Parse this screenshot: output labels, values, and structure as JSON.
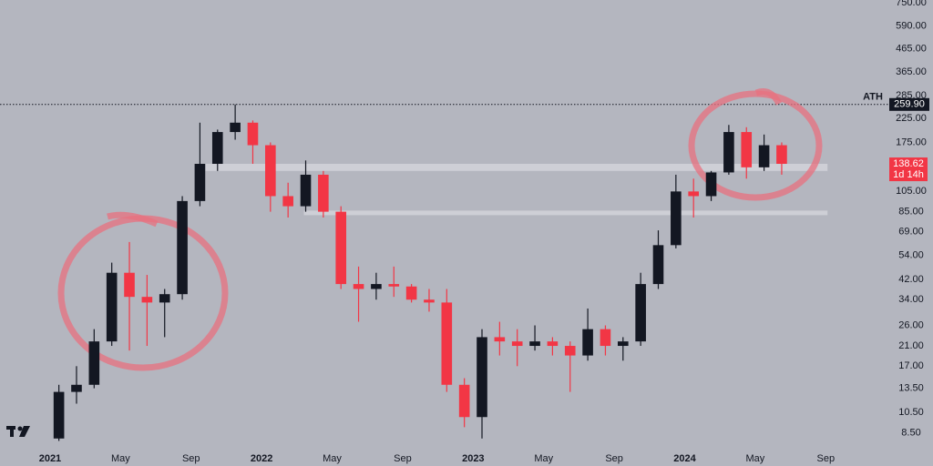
{
  "chart_data": {
    "type": "candlestick",
    "x": [
      0.5,
      1.5,
      2.5,
      3.5,
      4.5,
      5.5,
      6.5,
      7.5,
      8.5,
      9.5,
      10.5,
      11.5,
      12.5,
      13.5,
      14.5,
      15.5,
      16.5,
      17.5,
      18.5,
      19.5,
      20.5,
      21.5,
      22.5,
      23.5,
      24.5,
      25.5,
      26.5,
      27.5,
      28.5,
      29.5,
      30.5,
      31.5,
      32.5,
      33.5,
      34.5,
      35.5,
      36.5,
      37.5,
      38.5,
      39.5,
      40.5,
      41.5
    ],
    "open": [
      8,
      13,
      14,
      22,
      45,
      35,
      33,
      36,
      95,
      140,
      195,
      215,
      170,
      100,
      90,
      125,
      85,
      40,
      38,
      40,
      39,
      34,
      33,
      14,
      10,
      23,
      22,
      21,
      22,
      21,
      19,
      25,
      21,
      22,
      40,
      60,
      105,
      100,
      128,
      195,
      135,
      170
    ],
    "high": [
      14,
      17,
      25,
      50,
      62,
      44,
      38,
      100,
      215,
      200,
      260,
      220,
      175,
      115,
      145,
      130,
      90,
      48,
      45,
      48,
      40,
      38,
      38,
      15,
      25,
      27,
      25,
      26,
      23,
      22,
      31,
      26,
      23,
      45,
      70,
      125,
      120,
      130,
      210,
      205,
      190,
      175
    ],
    "low": [
      7.8,
      11.5,
      13.5,
      21,
      20,
      21,
      23,
      34,
      90,
      130,
      180,
      140,
      85,
      80,
      85,
      80,
      38,
      27,
      34,
      35,
      33,
      30,
      13,
      9,
      8,
      19,
      17,
      20,
      19,
      13,
      18,
      19,
      18,
      21,
      38,
      58,
      80,
      95,
      125,
      120,
      130,
      125
    ],
    "close": [
      13,
      14,
      22,
      45,
      35,
      33,
      36,
      95,
      140,
      195,
      215,
      170,
      100,
      90,
      125,
      85,
      40,
      38,
      40,
      39,
      34,
      33,
      14,
      10,
      23,
      22,
      21,
      22,
      21,
      19,
      25,
      21,
      22,
      40,
      60,
      105,
      100,
      128,
      195,
      135,
      170,
      140
    ],
    "up_color": "#131722",
    "down_color": "#f23645",
    "log_scale": true,
    "ylim": [
      7.4,
      772
    ],
    "yticks": [
      {
        "value": 8.5,
        "label": "8.50"
      },
      {
        "value": 10.5,
        "label": "10.50"
      },
      {
        "value": 13.5,
        "label": "13.50"
      },
      {
        "value": 17,
        "label": "17.00"
      },
      {
        "value": 21,
        "label": "21.00"
      },
      {
        "value": 26,
        "label": "26.00"
      },
      {
        "value": 34,
        "label": "34.00"
      },
      {
        "value": 42,
        "label": "42.00"
      },
      {
        "value": 54,
        "label": "54.00"
      },
      {
        "value": 69,
        "label": "69.00"
      },
      {
        "value": 85,
        "label": "85.00"
      },
      {
        "value": 105,
        "label": "105.00"
      },
      {
        "value": 175,
        "label": "175.00"
      },
      {
        "value": 225,
        "label": "225.00"
      },
      {
        "value": 285,
        "label": "285.00"
      },
      {
        "value": 365,
        "label": "365.00"
      },
      {
        "value": 465,
        "label": "465.00"
      },
      {
        "value": 590,
        "label": "590.00"
      },
      {
        "value": 750,
        "label": "750.00"
      }
    ],
    "xlim": [
      -2.84,
      47.55
    ],
    "xticks": [
      {
        "value": 0,
        "label": "2021"
      },
      {
        "value": 4,
        "label": "May"
      },
      {
        "value": 8,
        "label": "Sep"
      },
      {
        "value": 12,
        "label": "2022"
      },
      {
        "value": 16,
        "label": "May"
      },
      {
        "value": 20,
        "label": "Sep"
      },
      {
        "value": 24,
        "label": "2023"
      },
      {
        "value": 28,
        "label": "May"
      },
      {
        "value": 32,
        "label": "Sep"
      },
      {
        "value": 36,
        "label": "2024"
      },
      {
        "value": 40,
        "label": "May"
      },
      {
        "value": 44,
        "label": "Sep"
      }
    ],
    "ath": {
      "label": "ATH",
      "value": 259.9,
      "value_label": "259.90"
    },
    "last_price": {
      "value": 138.62,
      "countdown": "1d 14h",
      "color": "#f23645"
    },
    "zones": [
      {
        "from": 130,
        "to": 140,
        "x_from": 8.8,
        "x_to": 44.1
      },
      {
        "from": 82,
        "to": 86,
        "x_from": 14.4,
        "x_to": 44.1
      }
    ]
  }
}
